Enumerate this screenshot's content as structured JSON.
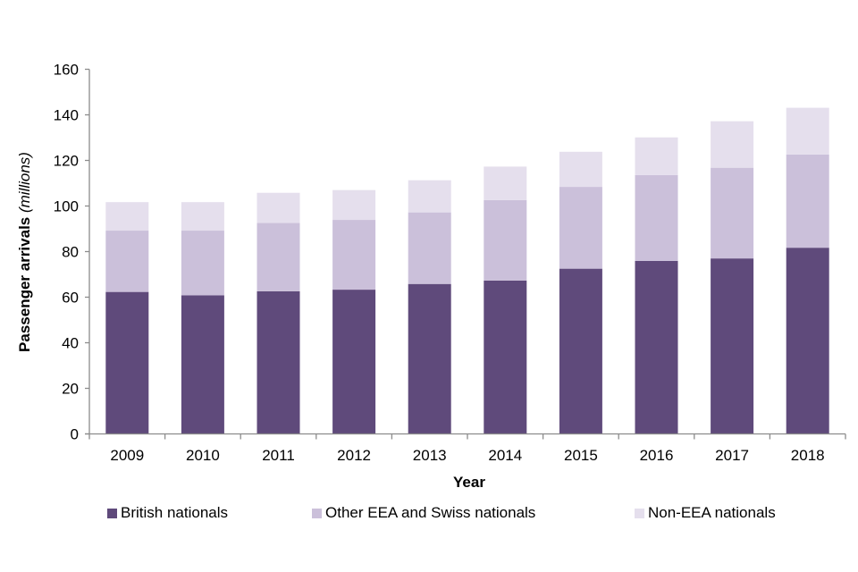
{
  "chart_data": {
    "type": "bar",
    "stacked": true,
    "title": "",
    "xlabel": "Year",
    "ylabel": "Passenger arrivals",
    "ylabel_suffix": "(millions)",
    "ylim": [
      0,
      160
    ],
    "yticks": [
      0,
      20,
      40,
      60,
      80,
      100,
      120,
      140,
      160
    ],
    "grid": false,
    "legend_position": "bottom",
    "categories": [
      "2009",
      "2010",
      "2011",
      "2012",
      "2013",
      "2014",
      "2015",
      "2016",
      "2017",
      "2018"
    ],
    "series": [
      {
        "name": "British nationals",
        "color": "#5f4a7b",
        "values": [
          62.3,
          60.8,
          62.6,
          63.3,
          65.8,
          67.3,
          72.5,
          75.9,
          77.0,
          81.7
        ]
      },
      {
        "name": "Other EEA and Swiss nationals",
        "color": "#cbc0da",
        "values": [
          26.9,
          28.4,
          30.0,
          30.6,
          31.4,
          35.3,
          35.9,
          37.7,
          39.8,
          40.9
        ]
      },
      {
        "name": "Non-EEA nationals",
        "color": "#e5dfed",
        "values": [
          12.5,
          12.5,
          13.2,
          13.1,
          14.1,
          14.7,
          15.4,
          16.5,
          20.4,
          20.5
        ]
      }
    ]
  }
}
